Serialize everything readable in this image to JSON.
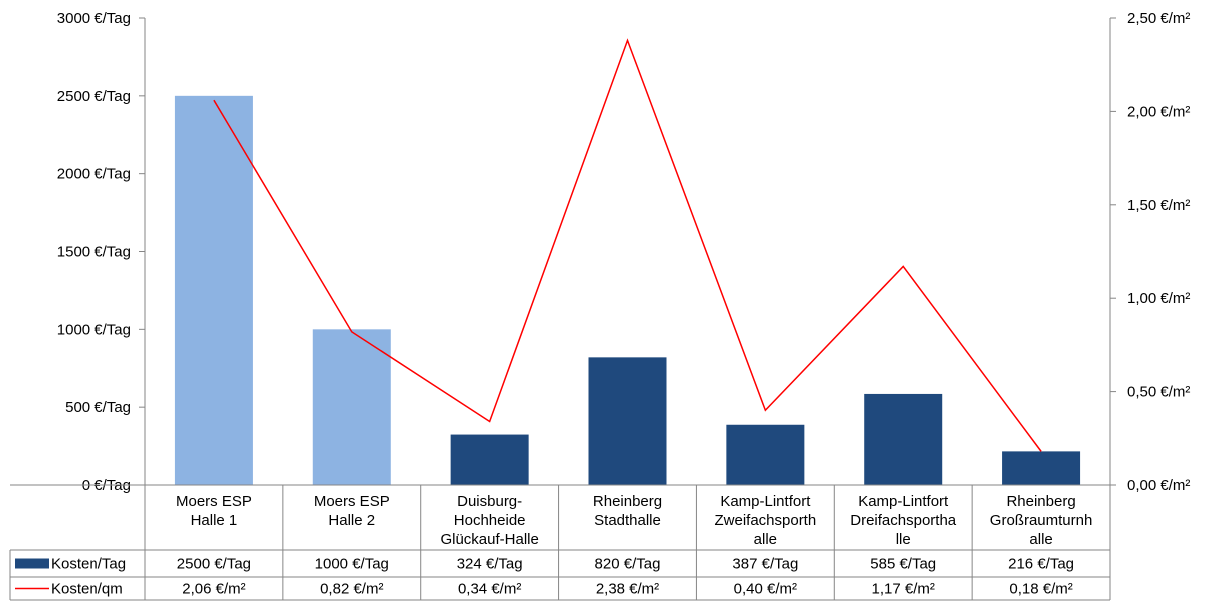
{
  "chart_data": {
    "type": "bar",
    "categories": [
      [
        "Moers ESP",
        "Halle 1"
      ],
      [
        "Moers ESP",
        "Halle 2"
      ],
      [
        "Duisburg-",
        "Hochheide",
        "Glückauf-Halle"
      ],
      [
        "Rheinberg",
        "Stadthalle"
      ],
      [
        "Kamp-Lintfort",
        "Zweifachsporth",
        "alle"
      ],
      [
        "Kamp-Lintfort",
        "Dreifachsportha",
        "lle"
      ],
      [
        "Rheinberg",
        "Großraumturnh",
        "alle"
      ]
    ],
    "series": [
      {
        "name": "Kosten/Tag",
        "type": "bar",
        "axis": "left",
        "values": [
          2500,
          1000,
          324,
          820,
          387,
          585,
          216
        ],
        "labels": [
          "2500 €/Tag",
          "1000 €/Tag",
          "324 €/Tag",
          "820 €/Tag",
          "387 €/Tag",
          "585 €/Tag",
          "216 €/Tag"
        ],
        "colors": [
          "#8db3e2",
          "#8db3e2",
          "#1f497d",
          "#1f497d",
          "#1f497d",
          "#1f497d",
          "#1f497d"
        ]
      },
      {
        "name": "Kosten/qm",
        "type": "line",
        "axis": "right",
        "values": [
          2.06,
          0.82,
          0.34,
          2.38,
          0.4,
          1.17,
          0.18
        ],
        "labels": [
          "2,06 €/m²",
          "0,82 €/m²",
          "0,34 €/m²",
          "2,38 €/m²",
          "0,40 €/m²",
          "1,17 €/m²",
          "0,18 €/m²"
        ],
        "color": "#ff0000"
      }
    ],
    "left_axis": {
      "ylim": [
        0,
        3000
      ],
      "ticks": [
        0,
        500,
        1000,
        1500,
        2000,
        2500,
        3000
      ],
      "tick_labels": [
        "0 €/Tag",
        "500 €/Tag",
        "1000 €/Tag",
        "1500 €/Tag",
        "2000 €/Tag",
        "2500 €/Tag",
        "3000 €/Tag"
      ]
    },
    "right_axis": {
      "ylim": [
        0,
        2.5
      ],
      "ticks": [
        0,
        0.5,
        1.0,
        1.5,
        2.0,
        2.5
      ],
      "tick_labels": [
        "0,00 €/m²",
        "0,50 €/m²",
        "1,00 €/m²",
        "1,50 €/m²",
        "2,00 €/m²",
        "2,50 €/m²"
      ]
    },
    "data_table": true,
    "grid": false,
    "legend": "data-table-left"
  }
}
